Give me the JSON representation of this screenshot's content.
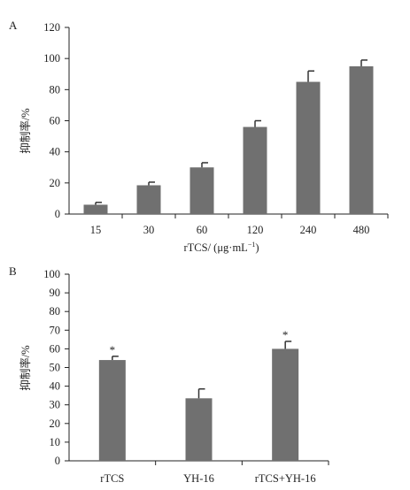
{
  "chart_data": [
    {
      "panel": "A",
      "type": "bar",
      "categories": [
        "15",
        "30",
        "60",
        "120",
        "240",
        "480"
      ],
      "values": [
        6,
        18.5,
        30,
        56,
        85,
        95
      ],
      "errors": [
        1.5,
        2,
        3,
        4,
        7,
        4
      ],
      "xlabel": "rTCS/ (μg·mL⁻¹)",
      "ylabel": "抑制率/%",
      "ylim": [
        0,
        120
      ],
      "yticks": [
        0,
        20,
        40,
        60,
        80,
        100,
        120
      ],
      "bar_color": "#707070"
    },
    {
      "panel": "B",
      "type": "bar",
      "categories": [
        "rTCS",
        "YH-16",
        "rTCS+YH-16"
      ],
      "values": [
        54,
        33.5,
        60
      ],
      "errors": [
        2,
        5,
        4
      ],
      "annotations": [
        "*",
        "",
        "*"
      ],
      "xlabel": "",
      "ylabel": "抑制率/%",
      "ylim": [
        0,
        100
      ],
      "yticks": [
        0,
        10,
        20,
        30,
        40,
        50,
        60,
        70,
        80,
        90,
        100
      ],
      "bar_color": "#707070"
    }
  ]
}
